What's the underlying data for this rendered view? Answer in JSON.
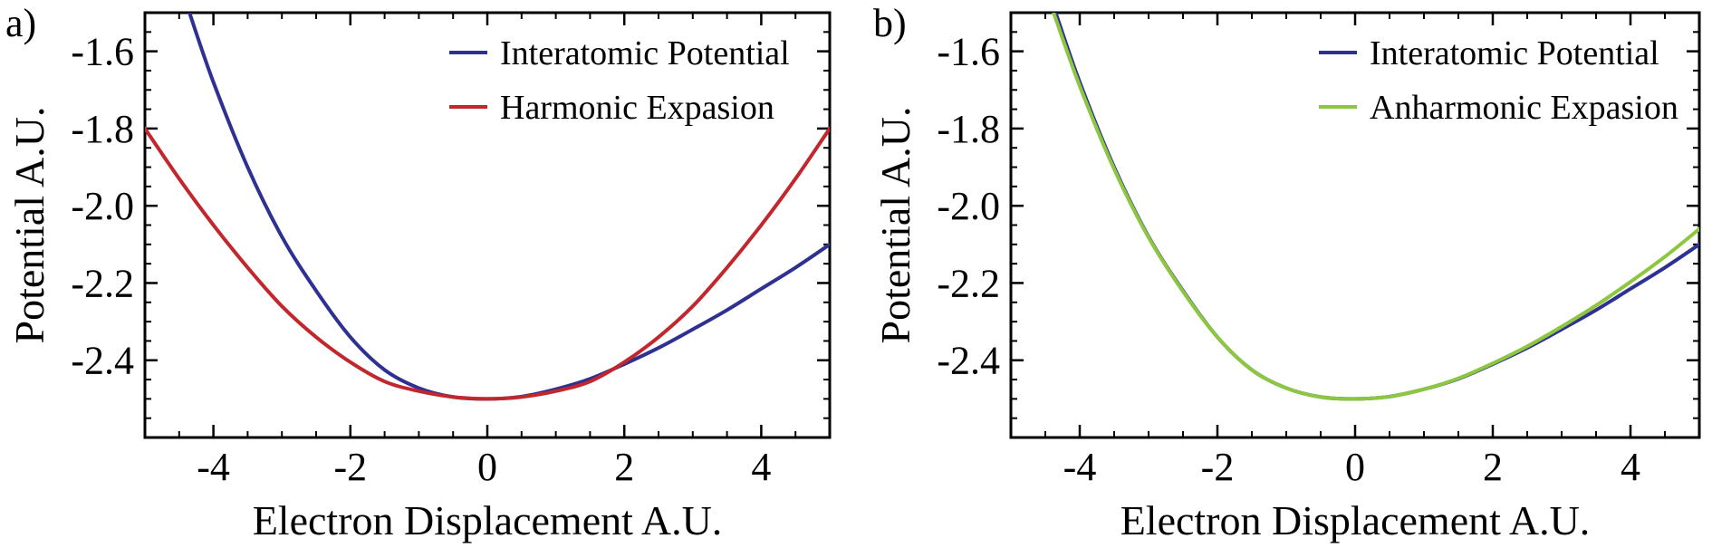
{
  "chart_data": [
    {
      "type": "line",
      "panel_label": "a)",
      "xlabel": "Electron Displacement A.U.",
      "ylabel": "Potential A.U.",
      "xlim": [
        -5,
        5
      ],
      "ylim": [
        -2.6,
        -1.5
      ],
      "xticks": [
        -4,
        -2,
        0,
        2,
        4
      ],
      "yticks": [
        -2.4,
        -2.2,
        -2.0,
        -1.8,
        -1.6
      ],
      "xtick_labels": [
        "-4",
        "-2",
        "0",
        "2",
        "4"
      ],
      "ytick_labels": [
        "-2.4",
        "-2.2",
        "-2.0",
        "-1.8",
        "-1.6"
      ],
      "grid": false,
      "legend_position": "top-right",
      "series": [
        {
          "name": "Interatomic Potential",
          "color": "#2e3192",
          "x": [
            -4.35,
            -4,
            -3.5,
            -3,
            -2.5,
            -2,
            -1.5,
            -1,
            -0.5,
            0,
            0.5,
            1,
            1.5,
            2,
            2.5,
            3,
            3.5,
            4,
            4.5,
            5
          ],
          "y": [
            -1.5,
            -1.68,
            -1.9,
            -2.08,
            -2.22,
            -2.34,
            -2.425,
            -2.472,
            -2.495,
            -2.5,
            -2.494,
            -2.475,
            -2.448,
            -2.41,
            -2.368,
            -2.32,
            -2.27,
            -2.215,
            -2.16,
            -2.1
          ]
        },
        {
          "name": "Harmonic Expasion",
          "color": "#c1272d",
          "x": [
            -5,
            -4.5,
            -4,
            -3.5,
            -3,
            -2.5,
            -2,
            -1.5,
            -1,
            -0.5,
            0,
            0.5,
            1,
            1.5,
            2,
            2.5,
            3,
            3.5,
            4,
            4.5,
            5
          ],
          "y": [
            -1.8,
            -1.93,
            -2.05,
            -2.16,
            -2.26,
            -2.34,
            -2.405,
            -2.455,
            -2.48,
            -2.495,
            -2.5,
            -2.495,
            -2.48,
            -2.455,
            -2.405,
            -2.34,
            -2.26,
            -2.16,
            -2.05,
            -1.93,
            -1.8
          ]
        }
      ]
    },
    {
      "type": "line",
      "panel_label": "b)",
      "xlabel": "Electron Displacement A.U.",
      "ylabel": "Potential A.U.",
      "xlim": [
        -5,
        5
      ],
      "ylim": [
        -2.6,
        -1.5
      ],
      "xticks": [
        -4,
        -2,
        0,
        2,
        4
      ],
      "yticks": [
        -2.4,
        -2.2,
        -2.0,
        -1.8,
        -1.6
      ],
      "xtick_labels": [
        "-4",
        "-2",
        "0",
        "2",
        "4"
      ],
      "ytick_labels": [
        "-2.4",
        "-2.2",
        "-2.0",
        "-1.8",
        "-1.6"
      ],
      "grid": false,
      "legend_position": "top-right",
      "series": [
        {
          "name": "Interatomic Potential",
          "color": "#2e3192",
          "x": [
            -4.35,
            -4,
            -3.5,
            -3,
            -2.5,
            -2,
            -1.5,
            -1,
            -0.5,
            0,
            0.5,
            1,
            1.5,
            2,
            2.5,
            3,
            3.5,
            4,
            4.5,
            5
          ],
          "y": [
            -1.5,
            -1.68,
            -1.9,
            -2.08,
            -2.22,
            -2.34,
            -2.425,
            -2.472,
            -2.495,
            -2.5,
            -2.494,
            -2.475,
            -2.448,
            -2.41,
            -2.368,
            -2.32,
            -2.27,
            -2.215,
            -2.16,
            -2.1
          ]
        },
        {
          "name": "Anharmonic Expasion",
          "color": "#8dc63f",
          "x": [
            -4.38,
            -4,
            -3.5,
            -3,
            -2.5,
            -2,
            -1.5,
            -1,
            -0.5,
            0,
            0.5,
            1,
            1.5,
            2,
            2.5,
            3,
            3.5,
            4,
            4.5,
            5
          ],
          "y": [
            -1.5,
            -1.69,
            -1.905,
            -2.082,
            -2.222,
            -2.34,
            -2.425,
            -2.472,
            -2.495,
            -2.5,
            -2.494,
            -2.475,
            -2.447,
            -2.408,
            -2.364,
            -2.313,
            -2.258,
            -2.197,
            -2.132,
            -2.06
          ]
        }
      ]
    }
  ]
}
